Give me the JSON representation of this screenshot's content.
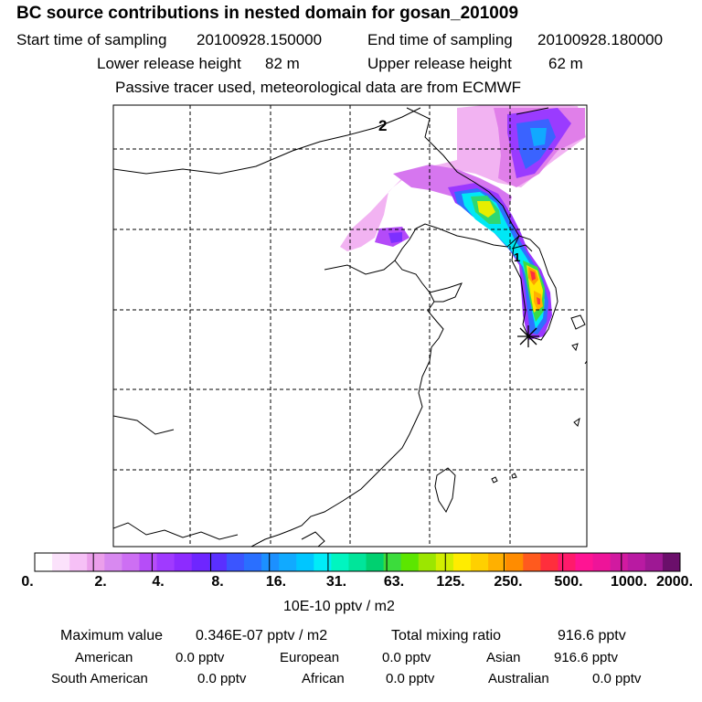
{
  "title": "BC  source contributions in nested domain for gosan_201009",
  "start_label": "Start time of sampling",
  "start_value": "20100928.150000",
  "end_label": "End time of sampling",
  "end_value": "20100928.180000",
  "lower_label": "Lower release height",
  "lower_value": "82 m",
  "upper_label": "Upper release height",
  "upper_value": "62 m",
  "note": "Passive tracer used, meteorological data are from ECMWF",
  "map": {
    "contour_labels": [
      "2",
      "1"
    ],
    "receptor_marker": "receptor-star-icon"
  },
  "colorbar": {
    "ticks": [
      "0.",
      "2.",
      "4.",
      "8.",
      "16.",
      "31.",
      "63.",
      "125.",
      "250.",
      "500.",
      "1000.",
      "2000."
    ],
    "colors": [
      "#ffffff",
      "#fbe2fb",
      "#f6c0f6",
      "#eb9feb",
      "#d889f0",
      "#cd6ff3",
      "#b64df8",
      "#a03aff",
      "#8d2bff",
      "#6e26ff",
      "#5a2fff",
      "#3b55ff",
      "#2a6fff",
      "#1c90ff",
      "#11aaff",
      "#00c6ff",
      "#00ecf8",
      "#00f5c0",
      "#00e59a",
      "#00d070",
      "#3cdc3c",
      "#5ce600",
      "#9ce600",
      "#d2ee00",
      "#ffec00",
      "#ffd000",
      "#ffb000",
      "#ff8c00",
      "#ff5a1e",
      "#ff2e3c",
      "#ff1a6b",
      "#ff1493",
      "#ee1499",
      "#d11aa0",
      "#b91aa2",
      "#9e1894",
      "#6b0f6b"
    ],
    "unit": "10E-10 pptv / m2"
  },
  "stats": {
    "max_label": "Maximum value",
    "max_value": "0.346E-07 pptv / m2",
    "total_label": "Total mixing ratio",
    "total_value": "916.6 pptv",
    "regions": [
      {
        "name": "American",
        "value": "0.0 pptv"
      },
      {
        "name": "European",
        "value": "0.0 pptv"
      },
      {
        "name": "Asian",
        "value": "916.6 pptv"
      },
      {
        "name": "South American",
        "value": "0.0 pptv"
      },
      {
        "name": "African",
        "value": "0.0 pptv"
      },
      {
        "name": "Australian",
        "value": "0.0 pptv"
      }
    ]
  }
}
